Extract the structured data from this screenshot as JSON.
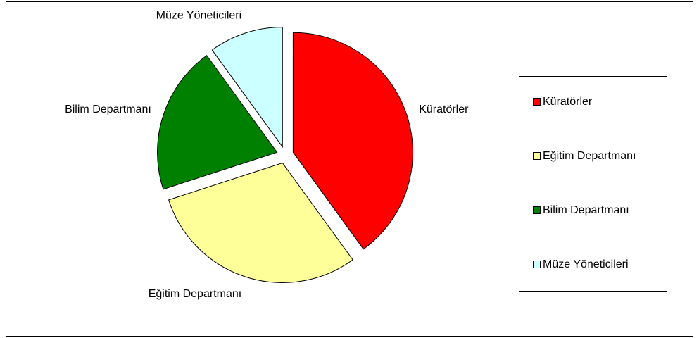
{
  "chart_data": {
    "type": "pie",
    "categories": [
      "Küratörler",
      "Eğitim Departmanı",
      "Bilim Departmanı",
      "Müze Yöneticileri"
    ],
    "values": [
      40,
      30,
      20,
      10
    ],
    "colors": [
      "#ff0000",
      "#ffff99",
      "#008000",
      "#ccffff"
    ],
    "legend": "right"
  }
}
